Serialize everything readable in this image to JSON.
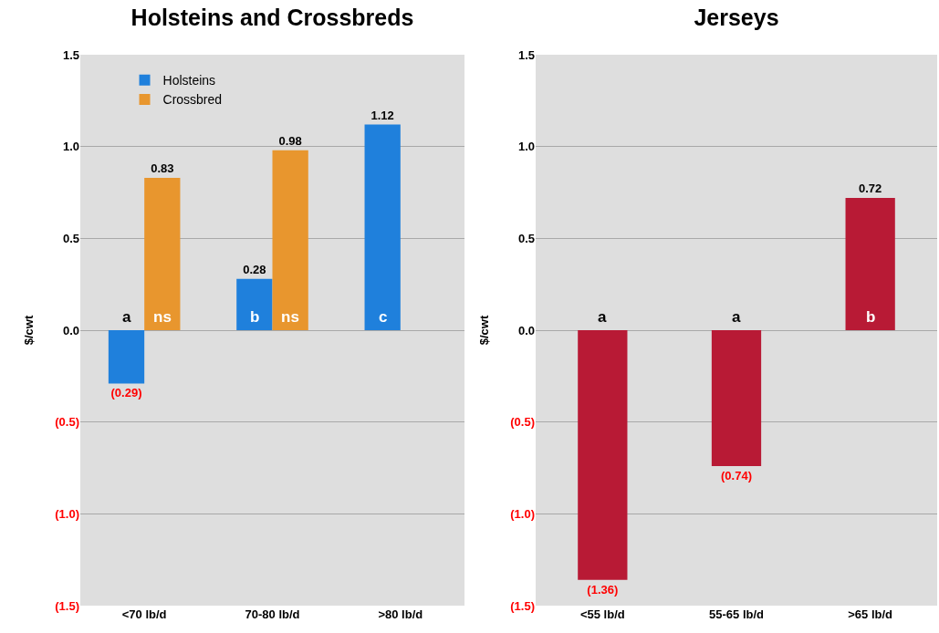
{
  "chart_data": [
    {
      "type": "bar",
      "title": "Holsteins and Crossbreds",
      "ylabel": "$/cwt",
      "categories": [
        "<70 lb/d",
        "70-80 lb/d",
        ">80 lb/d"
      ],
      "series": [
        {
          "name": "Holsteins",
          "color": "#1f80dc",
          "values": [
            -0.29,
            0.28,
            1.12
          ],
          "value_labels": [
            "(0.29)",
            "0.28",
            "1.12"
          ]
        },
        {
          "name": "Crossbred",
          "color": "#e8962e",
          "values": [
            0.83,
            0.98,
            null
          ],
          "value_labels": [
            "0.83",
            "0.98",
            null
          ]
        }
      ],
      "ylim": [
        -1.5,
        1.5
      ],
      "yticks": [
        {
          "value": -1.5,
          "label": "(1.5)"
        },
        {
          "value": -1.0,
          "label": "(1.0)"
        },
        {
          "value": -0.5,
          "label": "(0.5)"
        },
        {
          "value": 0,
          "label": "0.0"
        },
        {
          "value": 0.5,
          "label": "0.5"
        },
        {
          "value": 1.0,
          "label": "1.0"
        },
        {
          "value": 1.5,
          "label": "1.5"
        }
      ],
      "grid": "y",
      "legend": "top left",
      "annotations": [
        "a",
        "ns",
        "b",
        "ns",
        "c"
      ]
    },
    {
      "type": "bar",
      "title": "Jerseys",
      "ylabel": "$/cwt",
      "categories": [
        "<55 lb/d",
        "55-65 lb/d",
        ">65 lb/d"
      ],
      "series": [
        {
          "color": "#b81a35",
          "values": [
            -1.36,
            -0.74,
            0.72
          ],
          "value_labels": [
            "(1.36)",
            "(0.74)",
            "0.72"
          ]
        }
      ],
      "ylim": [
        -1.5,
        1.5
      ],
      "yticks": [
        {
          "value": -1.5,
          "label": "(1.5)"
        },
        {
          "value": -1.0,
          "label": "(1.0)"
        },
        {
          "value": -0.5,
          "label": "(0.5)"
        },
        {
          "value": 0,
          "label": "0.0"
        },
        {
          "value": 0.5,
          "label": "0.5"
        },
        {
          "value": 1.0,
          "label": "1.0"
        },
        {
          "value": 1.5,
          "label": "1.5"
        }
      ],
      "grid": "y",
      "legend": false,
      "annotations": [
        "a",
        "a",
        "b"
      ]
    }
  ]
}
